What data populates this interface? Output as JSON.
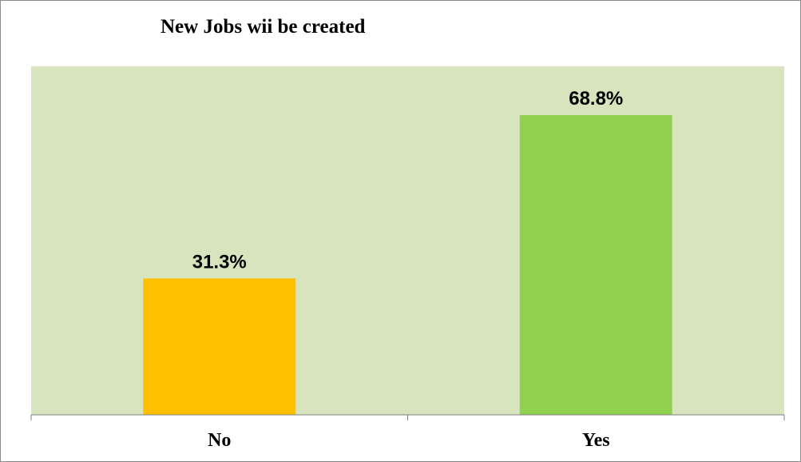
{
  "chart_data": {
    "type": "bar",
    "title": "New Jobs wii be created",
    "categories": [
      "No",
      "Yes"
    ],
    "values": [
      31.3,
      68.8
    ],
    "value_labels": [
      "31.3%",
      "68.8%"
    ],
    "unit": "%",
    "ylim": [
      0,
      80
    ],
    "grid": false,
    "legend": "none",
    "colors": {
      "plot_background": "#d7e4bd",
      "bars": [
        "#ffc000",
        "#92d050"
      ],
      "axis": "#7f7f7f",
      "border": "#8c8c8c"
    }
  }
}
